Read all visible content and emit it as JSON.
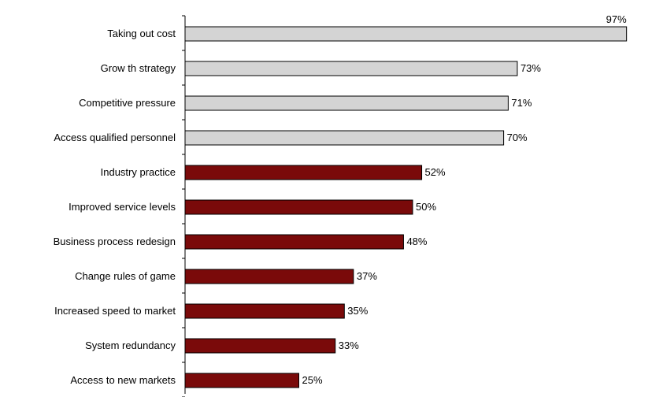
{
  "chart_data": {
    "type": "bar",
    "orientation": "horizontal",
    "categories": [
      "Taking out cost",
      "Grow th strategy",
      "Competitive pressure",
      "Access qualified personnel",
      "Industry practice",
      "Improved service levels",
      "Business process redesign",
      "Change rules of game",
      "Increased speed to market",
      "System redundancy",
      "Access to new markets"
    ],
    "values": [
      97,
      73,
      71,
      70,
      52,
      50,
      48,
      37,
      35,
      33,
      25
    ],
    "value_labels": [
      "97%",
      "73%",
      "71%",
      "70%",
      "52%",
      "50%",
      "48%",
      "37%",
      "35%",
      "33%",
      "25%"
    ],
    "highlight_group": [
      "gray",
      "gray",
      "gray",
      "gray",
      "red",
      "red",
      "red",
      "red",
      "red",
      "red",
      "red"
    ],
    "xlim": [
      0,
      100
    ],
    "grid": false,
    "title": "",
    "xlabel": "",
    "ylabel": ""
  },
  "colors": {
    "gray": "#d4d4d4",
    "red": "#7a0a0a",
    "bar_edge": "#000000",
    "axis": "#000000"
  }
}
